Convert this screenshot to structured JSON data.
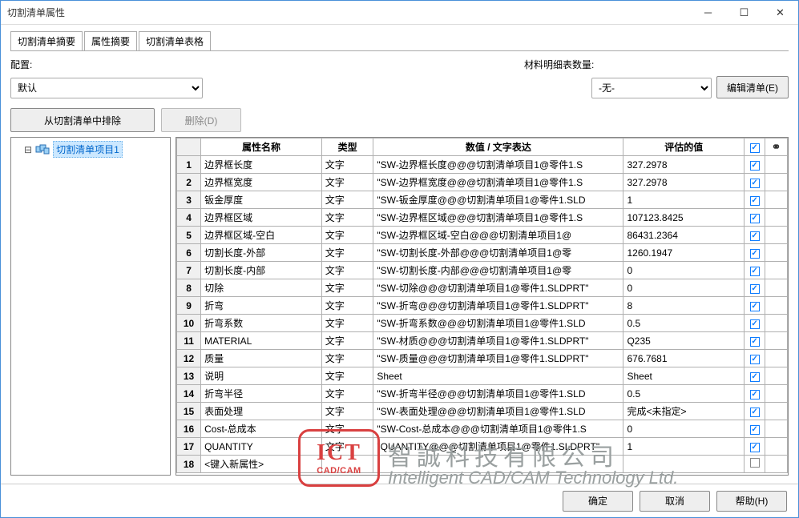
{
  "window": {
    "title": "切割清单属性"
  },
  "tabs": [
    {
      "label": "切割清单摘要",
      "active": true
    },
    {
      "label": "属性摘要",
      "active": false
    },
    {
      "label": "切割清单表格",
      "active": false
    }
  ],
  "config": {
    "label": "配置:",
    "value": "默认"
  },
  "material": {
    "label": "材料明细表数量:",
    "value": "-无-"
  },
  "buttons": {
    "edit_list": "编辑清单(E)",
    "exclude": "从切割清单中排除",
    "delete": "删除(D)",
    "ok": "确定",
    "cancel": "取消",
    "help": "帮助(H)"
  },
  "tree": {
    "item1": "切割清单项目1"
  },
  "grid": {
    "headers": {
      "name": "属性名称",
      "type": "类型",
      "expr": "数值 / 文字表达",
      "val": "评估的值",
      "check": "☑",
      "link": "🔗"
    },
    "rows": [
      {
        "n": "1",
        "name": "边界框长度",
        "type": "文字",
        "expr": "\"SW-边界框长度@@@切割清单项目1@零件1.S",
        "val": "327.2978",
        "chk": true,
        "link": false
      },
      {
        "n": "2",
        "name": "边界框宽度",
        "type": "文字",
        "expr": "\"SW-边界框宽度@@@切割清单项目1@零件1.S",
        "val": "327.2978",
        "chk": true,
        "link": false
      },
      {
        "n": "3",
        "name": "钣金厚度",
        "type": "文字",
        "expr": "\"SW-钣金厚度@@@切割清单项目1@零件1.SLD",
        "val": "1",
        "chk": true,
        "link": false
      },
      {
        "n": "4",
        "name": "边界框区域",
        "type": "文字",
        "expr": "\"SW-边界框区域@@@切割清单项目1@零件1.S",
        "val": "107123.8425",
        "chk": true,
        "link": false
      },
      {
        "n": "5",
        "name": "边界框区域-空白",
        "type": "文字",
        "expr": "\"SW-边界框区域-空白@@@切割清单项目1@",
        "val": "86431.2364",
        "chk": true,
        "link": false
      },
      {
        "n": "6",
        "name": "切割长度-外部",
        "type": "文字",
        "expr": "\"SW-切割长度-外部@@@切割清单项目1@零",
        "val": "1260.1947",
        "chk": true,
        "link": false
      },
      {
        "n": "7",
        "name": "切割长度-内部",
        "type": "文字",
        "expr": "\"SW-切割长度-内部@@@切割清单项目1@零",
        "val": "0",
        "chk": true,
        "link": false
      },
      {
        "n": "8",
        "name": "切除",
        "type": "文字",
        "expr": "\"SW-切除@@@切割清单项目1@零件1.SLDPRT\"",
        "val": "0",
        "chk": true,
        "link": false
      },
      {
        "n": "9",
        "name": "折弯",
        "type": "文字",
        "expr": "\"SW-折弯@@@切割清单项目1@零件1.SLDPRT\"",
        "val": "8",
        "chk": true,
        "link": false
      },
      {
        "n": "10",
        "name": "折弯系数",
        "type": "文字",
        "expr": "\"SW-折弯系数@@@切割清单项目1@零件1.SLD",
        "val": "0.5",
        "chk": true,
        "link": false
      },
      {
        "n": "11",
        "name": "MATERIAL",
        "type": "文字",
        "expr": "\"SW-材质@@@切割清单项目1@零件1.SLDPRT\"",
        "val": "Q235",
        "chk": true,
        "link": false
      },
      {
        "n": "12",
        "name": "质量",
        "type": "文字",
        "expr": "\"SW-质量@@@切割清单项目1@零件1.SLDPRT\"",
        "val": "676.7681",
        "chk": true,
        "link": false
      },
      {
        "n": "13",
        "name": "说明",
        "type": "文字",
        "expr": "Sheet",
        "val": "Sheet",
        "chk": true,
        "link": false
      },
      {
        "n": "14",
        "name": "折弯半径",
        "type": "文字",
        "expr": "\"SW-折弯半径@@@切割清单项目1@零件1.SLD",
        "val": "0.5",
        "chk": true,
        "link": false
      },
      {
        "n": "15",
        "name": "表面处理",
        "type": "文字",
        "expr": "\"SW-表面处理@@@切割清单项目1@零件1.SLD",
        "val": "完成<未指定>",
        "chk": true,
        "link": false
      },
      {
        "n": "16",
        "name": "Cost-总成本",
        "type": "文字",
        "expr": "\"SW-Cost-总成本@@@切割清单项目1@零件1.S",
        "val": "0",
        "chk": true,
        "link": false
      },
      {
        "n": "17",
        "name": "QUANTITY",
        "type": "文字",
        "expr": "\"QUANTITY@@@切割清单项目1@零件1.SLDPRT\"",
        "val": "1",
        "chk": true,
        "link": false
      },
      {
        "n": "18",
        "name": "<键入新属性>",
        "type": "",
        "expr": "",
        "val": "",
        "chk": false,
        "link": false
      }
    ]
  },
  "watermark": {
    "ict": "ICT",
    "cad": "CAD/CAM",
    "cn": "智誠科技有限公司",
    "en": "Intelligent CAD/CAM Technology Ltd."
  },
  "colors": {
    "window_border": "#4a90d9",
    "grid_border": "#b0b0b0",
    "check_blue": "#0d7cff",
    "tree_sel_bg": "#cce8ff",
    "tree_sel_fg": "#0066cc",
    "wm_red": "#d94040",
    "wm_gray": "#9aa0a0"
  }
}
